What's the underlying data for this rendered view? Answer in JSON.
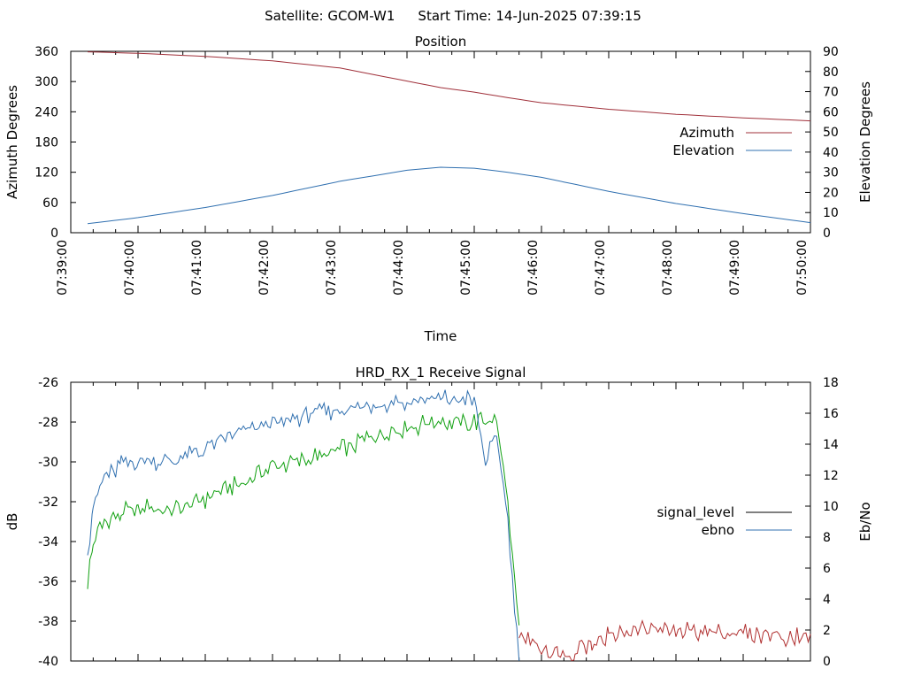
{
  "header": {
    "satellite": "Satellite: GCOM-W1",
    "start_time": "Start Time: 14-Jun-2025 07:39:15"
  },
  "chart_data": [
    {
      "type": "line",
      "title": "Position",
      "xlabel": "Time",
      "ylabel": "Azimuth Degrees",
      "y2label": "Elevation Degrees",
      "xlim": [
        "07:39:00",
        "07:50:00"
      ],
      "x_ticks": [
        "07:39:00",
        "07:40:00",
        "07:41:00",
        "07:42:00",
        "07:43:00",
        "07:44:00",
        "07:45:00",
        "07:46:00",
        "07:47:00",
        "07:48:00",
        "07:49:00",
        "07:50:00"
      ],
      "ylim": [
        0,
        360
      ],
      "y_ticks": [
        "0",
        "60",
        "120",
        "180",
        "240",
        "300",
        "360"
      ],
      "y2lim": [
        0,
        90
      ],
      "y2_ticks": [
        "0",
        "10",
        "20",
        "30",
        "40",
        "50",
        "60",
        "70",
        "80",
        "90"
      ],
      "legend": "right",
      "grid": false,
      "series": [
        {
          "name": "Azimuth",
          "axis": "left",
          "color": "#a0303a",
          "x": [
            "07:39:15",
            "07:40:00",
            "07:41:00",
            "07:42:00",
            "07:43:00",
            "07:44:00",
            "07:44:30",
            "07:45:00",
            "07:45:30",
            "07:46:00",
            "07:47:00",
            "07:48:00",
            "07:49:00",
            "07:50:00"
          ],
          "values": [
            359,
            356,
            350,
            341,
            327,
            301,
            288,
            279,
            268,
            258,
            245,
            235,
            228,
            222
          ]
        },
        {
          "name": "Elevation",
          "axis": "right",
          "color": "#3070b0",
          "x": [
            "07:39:15",
            "07:40:00",
            "07:41:00",
            "07:42:00",
            "07:43:00",
            "07:44:00",
            "07:44:30",
            "07:45:00",
            "07:45:30",
            "07:46:00",
            "07:47:00",
            "07:48:00",
            "07:49:00",
            "07:50:00"
          ],
          "values": [
            4.5,
            7.5,
            12.5,
            18.5,
            25.5,
            31.0,
            32.5,
            32.0,
            30.0,
            27.5,
            20.5,
            14.5,
            9.5,
            5.0
          ]
        }
      ]
    },
    {
      "type": "line",
      "title": "HRD_RX_1 Receive Signal",
      "ylabel": "dB",
      "y2label": "Eb/No",
      "xlim": [
        "07:39:00",
        "07:50:00"
      ],
      "ylim": [
        -40,
        -26
      ],
      "y_ticks": [
        "-40",
        "-38",
        "-36",
        "-34",
        "-32",
        "-30",
        "-28",
        "-26"
      ],
      "y2lim": [
        0,
        18
      ],
      "y2_ticks": [
        "0",
        "2",
        "4",
        "6",
        "8",
        "10",
        "12",
        "14",
        "16",
        "18"
      ],
      "legend": "right",
      "grid": false,
      "series": [
        {
          "name": "signal_level",
          "axis": "left",
          "color": "#000000",
          "legend_color": "#000000",
          "segments": [
            {
              "color": "#10a010",
              "x": [
                "07:39:15",
                "07:39:20",
                "07:39:30",
                "07:39:45",
                "07:40:00",
                "07:40:30",
                "07:41:00",
                "07:41:30",
                "07:42:00",
                "07:42:30",
                "07:43:00",
                "07:43:30",
                "07:44:00",
                "07:44:30",
                "07:45:00",
                "07:45:20",
                "07:45:30",
                "07:45:40"
              ],
              "values": [
                -36.0,
                -34.0,
                -33.0,
                -32.6,
                -32.3,
                -32.4,
                -31.9,
                -31.1,
                -30.3,
                -29.9,
                -29.4,
                -28.7,
                -28.3,
                -27.9,
                -28.0,
                -28.0,
                -32.0,
                -38.5
              ]
            },
            {
              "color": "#b03030",
              "x": [
                "07:45:40",
                "07:45:50",
                "07:46:00",
                "07:46:15",
                "07:46:30",
                "07:46:45",
                "07:47:00",
                "07:47:30",
                "07:48:00",
                "07:48:30",
                "07:49:00",
                "07:49:30",
                "07:50:00"
              ],
              "values": [
                -38.5,
                -39.0,
                -39.3,
                -39.6,
                -39.5,
                -39.0,
                -38.7,
                -38.4,
                -38.5,
                -38.6,
                -38.6,
                -38.7,
                -38.8
              ]
            }
          ]
        },
        {
          "name": "ebno",
          "axis": "right",
          "color": "#3070b0",
          "x": [
            "07:39:15",
            "07:39:20",
            "07:39:30",
            "07:39:45",
            "07:40:00",
            "07:40:30",
            "07:41:00",
            "07:41:30",
            "07:42:00",
            "07:42:30",
            "07:43:00",
            "07:43:30",
            "07:44:00",
            "07:44:30",
            "07:45:00",
            "07:45:10",
            "07:45:20",
            "07:45:30",
            "07:45:40"
          ],
          "values": [
            7.0,
            10.0,
            11.8,
            12.7,
            13.0,
            12.9,
            13.7,
            14.8,
            15.3,
            15.9,
            16.2,
            16.5,
            16.8,
            17.0,
            16.8,
            13.0,
            14.5,
            9.0,
            0.0
          ]
        }
      ]
    }
  ]
}
